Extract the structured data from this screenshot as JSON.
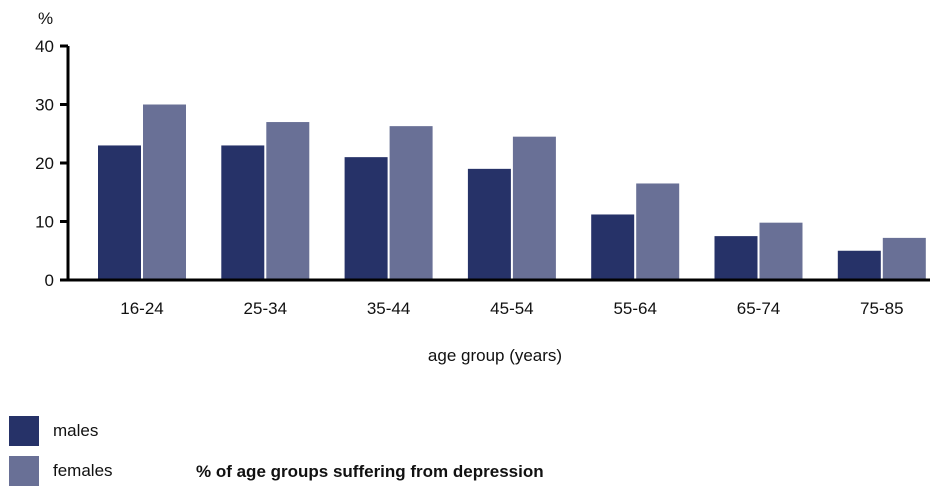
{
  "chart_data": {
    "type": "bar",
    "categories": [
      "16-24",
      "25-34",
      "35-44",
      "45-54",
      "55-64",
      "65-74",
      "75-85"
    ],
    "series": [
      {
        "name": "males",
        "values": [
          23,
          23,
          21,
          19,
          11.2,
          7.5,
          5
        ]
      },
      {
        "name": "females",
        "values": [
          30,
          27,
          26.3,
          24.5,
          16.5,
          9.8,
          7.2
        ]
      }
    ],
    "xlabel": "age group (years)",
    "ylabel": "%",
    "ylim": [
      0,
      40
    ],
    "yticks": [
      0,
      10,
      20,
      30,
      40
    ],
    "grid": false,
    "caption": "% of age groups suffering from depression"
  },
  "colors": {
    "males": "#263268",
    "females": "#697096",
    "axis": "#000000"
  },
  "legend": {
    "males_label": "males",
    "females_label": "females"
  }
}
